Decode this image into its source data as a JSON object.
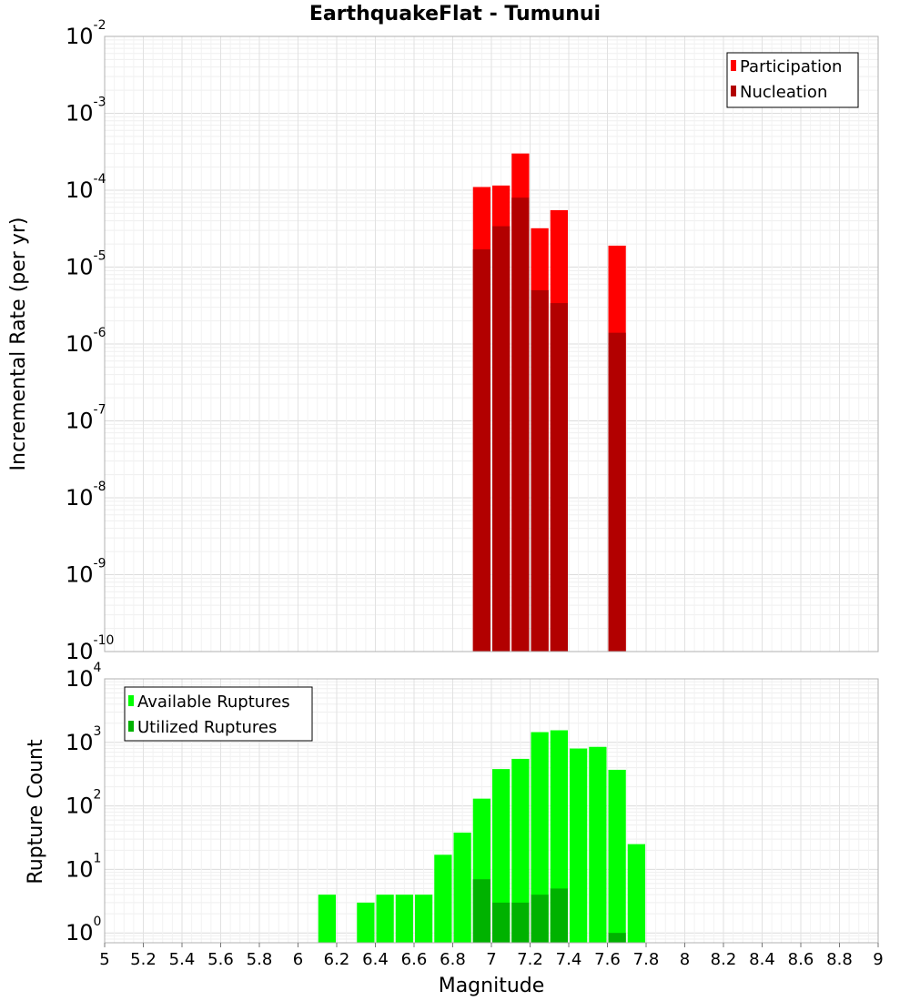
{
  "chart_data": [
    {
      "type": "bar",
      "title": "EarthquakeFlat - Tumunui",
      "xlabel": "Magnitude",
      "ylabel": "Incremental Rate (per yr)",
      "yscale": "log",
      "xlim": [
        5,
        9
      ],
      "ylim": [
        1e-10,
        0.01
      ],
      "grid": true,
      "legend_position": "top-right",
      "bin_width": 0.1,
      "y_ticks": [
        {
          "base": "10",
          "exp": "-10"
        },
        {
          "base": "10",
          "exp": "-9"
        },
        {
          "base": "10",
          "exp": "-8"
        },
        {
          "base": "10",
          "exp": "-7"
        },
        {
          "base": "10",
          "exp": "-6"
        },
        {
          "base": "10",
          "exp": "-5"
        },
        {
          "base": "10",
          "exp": "-4"
        },
        {
          "base": "10",
          "exp": "-3"
        },
        {
          "base": "10",
          "exp": "-2"
        }
      ],
      "series": [
        {
          "name": "Participation",
          "color": "#ff0000",
          "x": [
            6.95,
            7.05,
            7.15,
            7.25,
            7.35,
            7.65
          ],
          "values": [
            0.00011,
            0.000115,
            0.0003,
            3.2e-05,
            5.5e-05,
            1.9e-05
          ]
        },
        {
          "name": "Nucleation",
          "color": "#b20000",
          "x": [
            6.95,
            7.05,
            7.15,
            7.25,
            7.35,
            7.65
          ],
          "values": [
            1.7e-05,
            3.4e-05,
            8e-05,
            5e-06,
            3.4e-06,
            1.4e-06
          ]
        }
      ]
    },
    {
      "type": "bar",
      "xlabel": "Magnitude",
      "ylabel": "Rupture Count",
      "yscale": "log",
      "xlim": [
        5,
        9
      ],
      "ylim": [
        0.7,
        10000
      ],
      "grid": true,
      "legend_position": "top-left",
      "bin_width": 0.1,
      "x_ticks": [
        "5",
        "5.2",
        "5.4",
        "5.6",
        "5.8",
        "6",
        "6.2",
        "6.4",
        "6.6",
        "6.8",
        "7",
        "7.2",
        "7.4",
        "7.6",
        "7.8",
        "8",
        "8.2",
        "8.4",
        "8.6",
        "8.8",
        "9"
      ],
      "y_ticks": [
        {
          "base": "10",
          "exp": "0"
        },
        {
          "base": "10",
          "exp": "1"
        },
        {
          "base": "10",
          "exp": "2"
        },
        {
          "base": "10",
          "exp": "3"
        },
        {
          "base": "10",
          "exp": "4"
        }
      ],
      "series": [
        {
          "name": "Available Ruptures",
          "color": "#00ff00",
          "x": [
            6.15,
            6.35,
            6.45,
            6.55,
            6.65,
            6.75,
            6.85,
            6.95,
            7.05,
            7.15,
            7.25,
            7.35,
            7.45,
            7.55,
            7.65,
            7.75
          ],
          "values": [
            4,
            3,
            4,
            4,
            4,
            17,
            38,
            130,
            380,
            550,
            1450,
            1550,
            800,
            850,
            370,
            25
          ]
        },
        {
          "name": "Utilized Ruptures",
          "color": "#00b200",
          "x": [
            6.95,
            7.05,
            7.15,
            7.25,
            7.35,
            7.65
          ],
          "values": [
            7,
            3,
            3,
            4,
            5,
            1
          ]
        }
      ]
    }
  ]
}
